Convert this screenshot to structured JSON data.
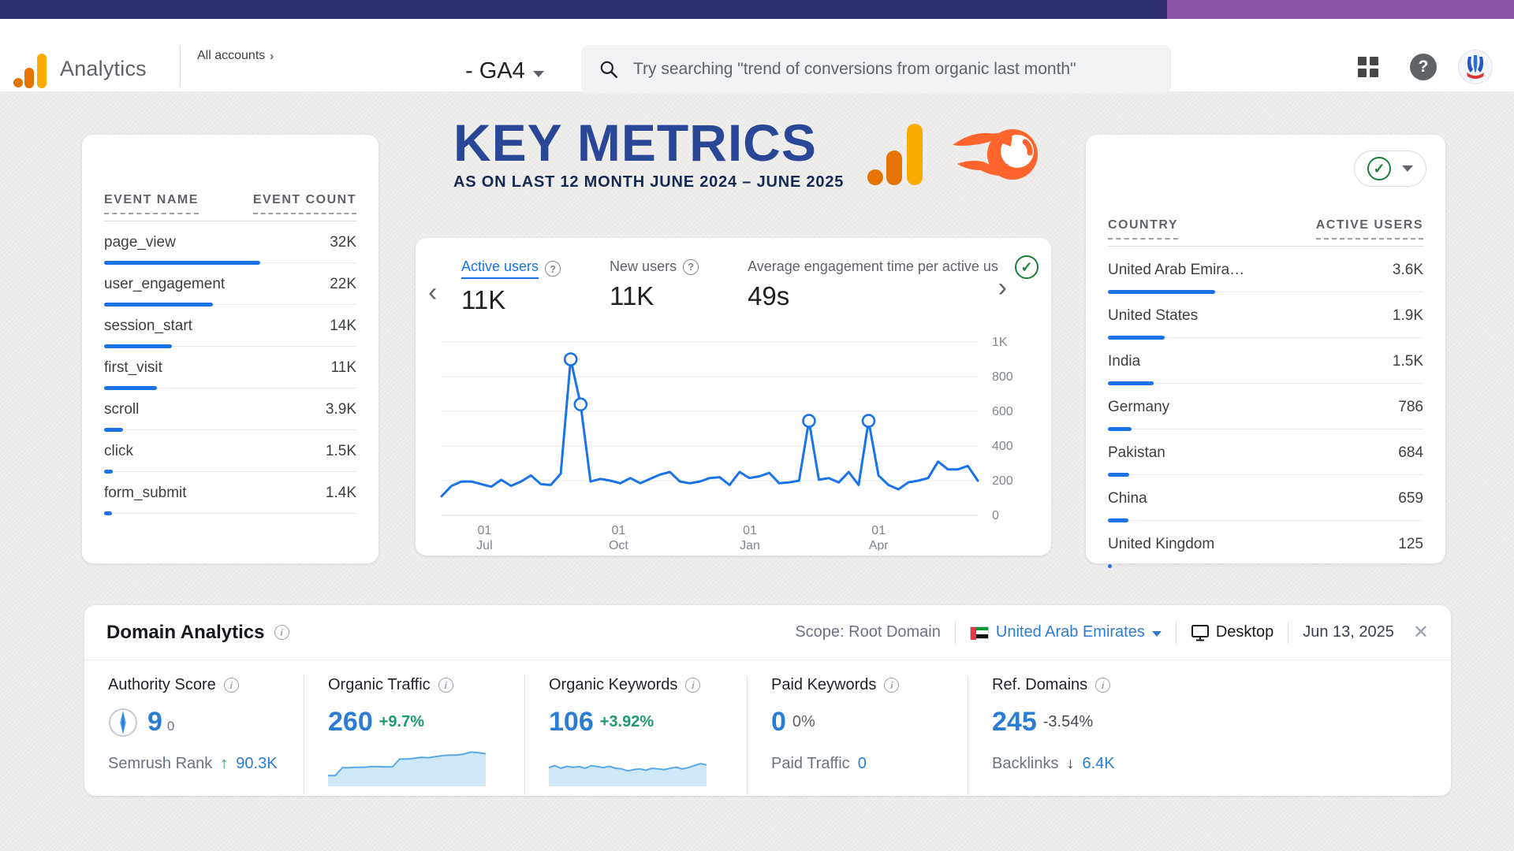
{
  "topbar": {
    "navy": "#2e2f6e",
    "purple": "#8c56a4"
  },
  "header": {
    "brand": "Analytics",
    "accounts_label": "All accounts",
    "property": "- GA4",
    "search_placeholder": "Try searching \"trend of conversions from organic last month\""
  },
  "title": {
    "heading": "KEY METRICS",
    "subheading": "AS ON LAST 12 MONTH JUNE 2024 – JUNE 2025"
  },
  "events_card": {
    "columns": [
      "EVENT NAME",
      "EVENT COUNT"
    ],
    "rows": [
      {
        "name": "page_view",
        "count": "32K",
        "bar_pct": 62
      },
      {
        "name": "user_engagement",
        "count": "22K",
        "bar_pct": 43
      },
      {
        "name": "session_start",
        "count": "14K",
        "bar_pct": 27
      },
      {
        "name": "first_visit",
        "count": "11K",
        "bar_pct": 21
      },
      {
        "name": "scroll",
        "count": "3.9K",
        "bar_pct": 7.5
      },
      {
        "name": "click",
        "count": "1.5K",
        "bar_pct": 3.4
      },
      {
        "name": "form_submit",
        "count": "1.4K",
        "bar_pct": 3.0
      }
    ]
  },
  "metrics_card": {
    "metrics": [
      {
        "label": "Active users",
        "value": "11K"
      },
      {
        "label": "New users",
        "value": "11K"
      },
      {
        "label": "Average engagement time per active us",
        "value": "49s"
      }
    ]
  },
  "countries_card": {
    "columns": [
      "COUNTRY",
      "ACTIVE USERS"
    ],
    "rows": [
      {
        "name": "United Arab Emira…",
        "count": "3.6K",
        "bar_pct": 34
      },
      {
        "name": "United States",
        "count": "1.9K",
        "bar_pct": 18
      },
      {
        "name": "India",
        "count": "1.5K",
        "bar_pct": 14.5
      },
      {
        "name": "Germany",
        "count": "786",
        "bar_pct": 7.6
      },
      {
        "name": "Pakistan",
        "count": "684",
        "bar_pct": 6.7
      },
      {
        "name": "China",
        "count": "659",
        "bar_pct": 6.5
      },
      {
        "name": "United Kingdom",
        "count": "125",
        "bar_pct": 1.2
      }
    ]
  },
  "domain_card": {
    "title": "Domain Analytics",
    "scope": "Scope: Root Domain",
    "country": "United Arab Emirates",
    "device": "Desktop",
    "date": "Jun 13, 2025",
    "authority": {
      "label": "Authority Score",
      "value": "9",
      "delta": "0",
      "sub_label": "Semrush Rank",
      "sub_arrow": "↑",
      "sub_value": "90.3K"
    },
    "organic_traffic": {
      "label": "Organic Traffic",
      "value": "260",
      "change": "+9.7%"
    },
    "organic_keywords": {
      "label": "Organic Keywords",
      "value": "106",
      "change": "+3.92%"
    },
    "paid_keywords": {
      "label": "Paid Keywords",
      "value": "0",
      "change": "0%",
      "sub_label": "Paid Traffic",
      "sub_value": "0"
    },
    "ref_domains": {
      "label": "Ref. Domains",
      "value": "245",
      "change": "-3.54%",
      "sub_label": "Backlinks",
      "sub_arrow": "↓",
      "sub_value": "6.4K"
    }
  },
  "chart_data": [
    {
      "type": "line",
      "title": "Active users over time (weekly, Jun 2024 – Jun 2025)",
      "ylim": [
        0,
        1000
      ],
      "y_ticks": [
        "0",
        "200",
        "400",
        "600",
        "800",
        "1K"
      ],
      "x_ticks": [
        {
          "line1": "01",
          "line2": "Jul",
          "frac": 0.08
        },
        {
          "line1": "01",
          "line2": "Oct",
          "frac": 0.33
        },
        {
          "line1": "01",
          "line2": "Jan",
          "frac": 0.575
        },
        {
          "line1": "01",
          "line2": "Apr",
          "frac": 0.815
        }
      ],
      "values": [
        110,
        170,
        195,
        195,
        180,
        165,
        205,
        170,
        195,
        230,
        180,
        175,
        240,
        900,
        640,
        195,
        210,
        200,
        185,
        215,
        185,
        210,
        235,
        250,
        195,
        185,
        195,
        215,
        220,
        175,
        250,
        215,
        225,
        245,
        185,
        190,
        200,
        545,
        205,
        215,
        190,
        250,
        175,
        545,
        230,
        175,
        150,
        190,
        200,
        215,
        310,
        265,
        265,
        285,
        200
      ],
      "marker_indices": [
        13,
        14,
        37,
        43
      ],
      "line_color": "#1a73e8",
      "grid": true,
      "legend": "none"
    },
    {
      "type": "area",
      "title": "Organic Traffic trend",
      "values": [
        28,
        28,
        52,
        52,
        53,
        53,
        55,
        55,
        54,
        54,
        78,
        78,
        80,
        83,
        82,
        85,
        88,
        90,
        90,
        93,
        99,
        97,
        94
      ]
    },
    {
      "type": "area",
      "title": "Organic Keywords trend",
      "values": [
        52,
        58,
        50,
        56,
        53,
        55,
        50,
        58,
        55,
        52,
        56,
        50,
        48,
        42,
        46,
        48,
        44,
        50,
        48,
        46,
        50,
        53,
        48,
        52,
        58,
        64,
        60
      ]
    }
  ]
}
